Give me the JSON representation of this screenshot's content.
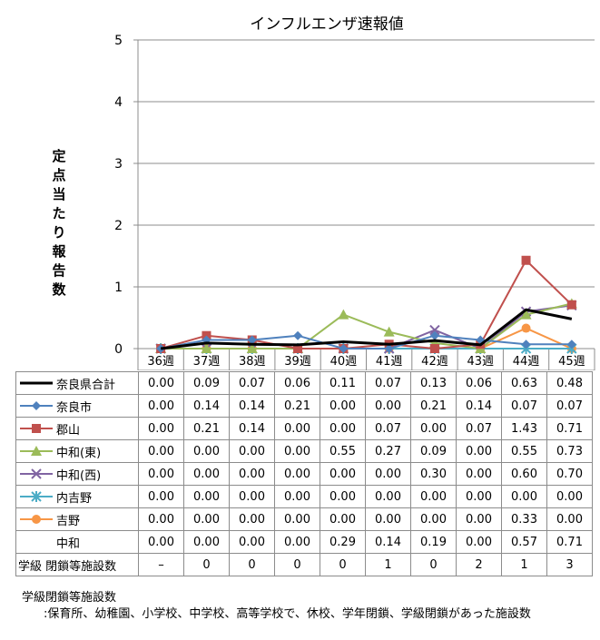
{
  "chart_data": {
    "type": "line",
    "title": "インフルエンザ速報値",
    "ylabel": "定点当たり報告数",
    "ylim": [
      0,
      5
    ],
    "yticks": [
      "0",
      "1",
      "2",
      "3",
      "4",
      "5"
    ],
    "grid": true,
    "categories": [
      "36週",
      "37週",
      "38週",
      "39週",
      "40週",
      "41週",
      "42週",
      "43週",
      "44週",
      "45週"
    ],
    "series": [
      {
        "name": "奈良県合計",
        "color": "#000000",
        "marker": "none",
        "width": 3,
        "values": [
          0.0,
          0.09,
          0.07,
          0.06,
          0.11,
          0.07,
          0.13,
          0.06,
          0.63,
          0.48
        ],
        "labels": [
          "0.00",
          "0.09",
          "0.07",
          "0.06",
          "0.11",
          "0.07",
          "0.13",
          "0.06",
          "0.63",
          "0.48"
        ]
      },
      {
        "name": "奈良市",
        "color": "#4f81bd",
        "marker": "diamond",
        "width": 2,
        "values": [
          0.0,
          0.14,
          0.14,
          0.21,
          0.0,
          0.0,
          0.21,
          0.14,
          0.07,
          0.07
        ],
        "labels": [
          "0.00",
          "0.14",
          "0.14",
          "0.21",
          "0.00",
          "0.00",
          "0.21",
          "0.14",
          "0.07",
          "0.07"
        ]
      },
      {
        "name": "郡山",
        "color": "#c0504d",
        "marker": "square",
        "width": 2,
        "values": [
          0.0,
          0.21,
          0.14,
          0.0,
          0.0,
          0.07,
          0.0,
          0.07,
          1.43,
          0.71
        ],
        "labels": [
          "0.00",
          "0.21",
          "0.14",
          "0.00",
          "0.00",
          "0.07",
          "0.00",
          "0.07",
          "1.43",
          "0.71"
        ]
      },
      {
        "name": "中和(東)",
        "color": "#9bbb59",
        "marker": "triangle",
        "width": 2,
        "values": [
          0.0,
          0.0,
          0.0,
          0.0,
          0.55,
          0.27,
          0.09,
          0.0,
          0.55,
          0.73
        ],
        "labels": [
          "0.00",
          "0.00",
          "0.00",
          "0.00",
          "0.55",
          "0.27",
          "0.09",
          "0.00",
          "0.55",
          "0.73"
        ]
      },
      {
        "name": "中和(西)",
        "color": "#8064a2",
        "marker": "x",
        "width": 2,
        "values": [
          0.0,
          0.0,
          0.0,
          0.0,
          0.0,
          0.0,
          0.3,
          0.0,
          0.6,
          0.7
        ],
        "labels": [
          "0.00",
          "0.00",
          "0.00",
          "0.00",
          "0.00",
          "0.00",
          "0.30",
          "0.00",
          "0.60",
          "0.70"
        ]
      },
      {
        "name": "内吉野",
        "color": "#4bacc6",
        "marker": "star",
        "width": 2,
        "values": [
          0.0,
          0.0,
          0.0,
          0.0,
          0.0,
          0.0,
          0.0,
          0.0,
          0.0,
          0.0
        ],
        "labels": [
          "0.00",
          "0.00",
          "0.00",
          "0.00",
          "0.00",
          "0.00",
          "0.00",
          "0.00",
          "0.00",
          "0.00"
        ]
      },
      {
        "name": "吉野",
        "color": "#f79646",
        "marker": "circle",
        "width": 2,
        "values": [
          0.0,
          0.0,
          0.0,
          0.0,
          0.0,
          0.0,
          0.0,
          0.0,
          0.33,
          0.0
        ],
        "labels": [
          "0.00",
          "0.00",
          "0.00",
          "0.00",
          "0.00",
          "0.00",
          "0.00",
          "0.00",
          "0.33",
          "0.00"
        ]
      },
      {
        "name": "中和",
        "color": null,
        "marker": "none",
        "width": 0,
        "values": [
          0.0,
          0.0,
          0.0,
          0.0,
          0.29,
          0.14,
          0.19,
          0.0,
          0.57,
          0.71
        ],
        "labels": [
          "0.00",
          "0.00",
          "0.00",
          "0.00",
          "0.29",
          "0.14",
          "0.19",
          "0.00",
          "0.57",
          "0.71"
        ]
      }
    ],
    "closures": {
      "name": "学級 閉鎖等施設数",
      "values": [
        "–",
        "0",
        "0",
        "0",
        "0",
        "1",
        "0",
        "2",
        "1",
        "3"
      ]
    }
  },
  "notes": {
    "line1": "学級閉鎖等施設数",
    "line2": ":保育所、幼稚園、小学校、中学校、高等学校で、休校、学年閉鎖、学級閉鎖があった施設数"
  }
}
